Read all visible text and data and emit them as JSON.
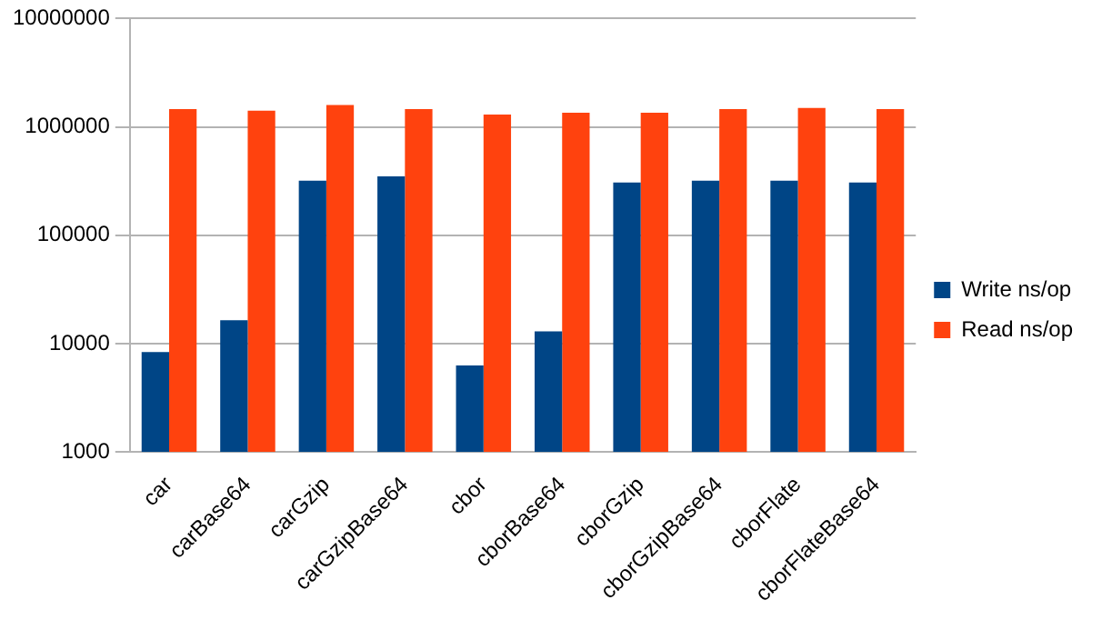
{
  "chart_data": {
    "type": "bar",
    "categories": [
      "car",
      "carBase64",
      "carGzip",
      "carGzipBase64",
      "cbor",
      "cborBase64",
      "cborGzip",
      "cborGzipBase64",
      "cborFlate",
      "cborFlateBase64"
    ],
    "series": [
      {
        "name": "Write ns/op",
        "color": "#004586",
        "values": [
          8400,
          16500,
          320000,
          350000,
          6300,
          13000,
          307000,
          320000,
          320000,
          307000
        ]
      },
      {
        "name": "Read ns/op",
        "color": "#ff420e",
        "values": [
          1460000,
          1410000,
          1590000,
          1460000,
          1300000,
          1350000,
          1350000,
          1460000,
          1500000,
          1460000
        ]
      }
    ],
    "log": true,
    "ylim": [
      1000,
      10000000
    ],
    "yticks": [
      1000,
      10000,
      100000,
      1000000,
      10000000
    ],
    "grid": "y",
    "legend": "right"
  }
}
